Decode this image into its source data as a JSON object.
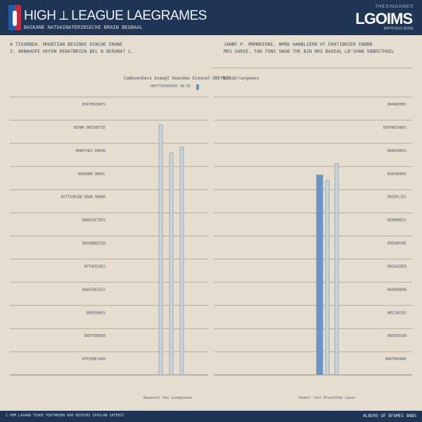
{
  "header": {
    "title": "HIGH ⟂ LEAGUE LAEGRAMES",
    "subtitle": "BASKANE NATUAINATERINSECKE BRAIN BEGBAAL",
    "brand_small": "THESINGAMES",
    "brand": "LGOIMS",
    "brand_tag": "BAYNTAGS BONE"
  },
  "intro": {
    "left_1": "A TIGORBEA. MHUBTIAN BESINKE HINCHE ERANE",
    "left_2": "3. ARBAHOFE HEFDN REBATBRIEN BEL B BERABAT L.",
    "right_1": "JAWBF P. MRMBRIRNE, NMRB HANBLIERB HT ERATIBRIER ENBRB",
    "right_2": "MEG SARSE. TAN TONS SWOB THE BIN BRS BASEAL LB'SHAB SBBRITHSEL"
  },
  "chart_left": {
    "title": "Cadevenbecs bseagt beandee bieanat DBE HIT.",
    "subtitle": "HBFPTHEANGERS BN BE"
  },
  "chart_right": {
    "title": "Fbaasbriangeees"
  },
  "axis": {
    "left_bottom": "Naaeanet hbs asemgnaeee",
    "right_bottom": "Sadeet feat Bfaeatheb seane"
  },
  "footer": {
    "left": "1 PBM LAGANA TEADE PERTANSBN BAR RECHINS SPASLAN SATEBST",
    "right": "ALBERS OF BFAMES BNBS"
  },
  "chart_data": [
    {
      "type": "bar",
      "title": "Cadevenbecs bseagt beandee bieanat DBE HIT.",
      "xlabel": "Naaeanet hbs asemgnaeee",
      "categories": [
        "BSKTHBIBRES",
        "BEHBR BRESBETIE",
        "BRBKTHES BRKHR",
        "BAREBBR BBNIL",
        "BSTTEHBIBB BAHB BRBNB",
        "BRBEEAETBES",
        "BREHBBBESEB",
        "BPTHEBSBES",
        "BABSEBEHIES",
        "BREEBBBES",
        "BRETEBBEEB",
        "BTESEBEIAEB"
      ],
      "series": [
        {
          "values": [
            0.05,
            0.02,
            0.68,
            0.9,
            0.05,
            0.02,
            0.05,
            0.03,
            0.06,
            0.03,
            0.02,
            0.05
          ]
        },
        {
          "values": [
            0.06,
            0.07,
            0.8,
            0.04,
            0.06,
            0.05,
            0.04,
            0.02,
            0.07,
            0.05,
            0.03,
            0.04
          ]
        },
        {
          "values": [
            0.04,
            0.05,
            0.82,
            0.05,
            0.04,
            0.03,
            0.06,
            0.04,
            0.05,
            0.06,
            0.04,
            0.06
          ]
        }
      ],
      "ylim": [
        0,
        1
      ]
    },
    {
      "type": "bar",
      "title": "Fbaasbriangeees",
      "xlabel": "Sadeet feat Bfaeatheb seane",
      "categories": [
        "BRANBEBRS",
        "BSBTNESHBBS",
        "BRBBSBRES",
        "BSBSBEBRS",
        "BREBPLIES",
        "BENBNBEES",
        "BREHBRSRE",
        "BREAGEBEB",
        "BRANBBEBB",
        "BREIBBIBS",
        "BREBSESEB",
        "BRBTHBSBBE"
      ],
      "series": [
        {
          "values": [
            0.03,
            0.02,
            0.72,
            0.04,
            0.03,
            0.05,
            0.04,
            0.02,
            0.03,
            0.04,
            0.05,
            0.03
          ]
        },
        {
          "values": [
            0.05,
            0.04,
            0.7,
            0.05,
            0.06,
            0.03,
            0.04,
            0.05,
            0.04,
            0.06,
            0.03,
            0.05
          ]
        },
        {
          "values": [
            0.04,
            0.06,
            0.76,
            0.05,
            0.04,
            0.05,
            0.06,
            0.04,
            0.05,
            0.03,
            0.04,
            0.06
          ]
        }
      ],
      "ylim": [
        0,
        1
      ]
    }
  ],
  "colors": {
    "header_bg": "#1f3556",
    "page_bg": "#e4ddd0",
    "bar_blue": "#6b95c6",
    "bar_light": "#c9d3da",
    "grid": "#b3ab9c"
  }
}
